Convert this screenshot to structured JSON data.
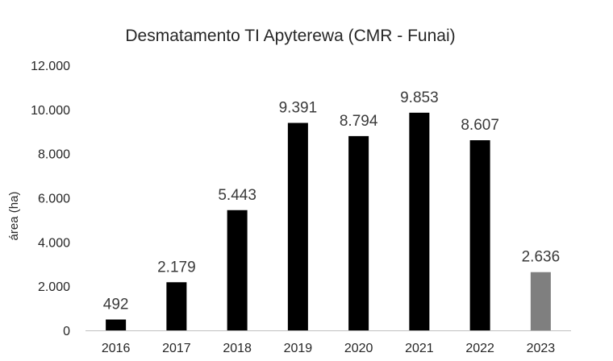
{
  "chart_data": {
    "type": "bar",
    "title": "Desmatamento TI Apyterewa (CMR - Funai)",
    "xlabel": "",
    "ylabel": "área (ha)",
    "ylim": [
      0,
      12000
    ],
    "yticks": [
      0,
      2000,
      4000,
      6000,
      8000,
      10000,
      12000
    ],
    "ytick_labels": [
      "0",
      "2.000",
      "4.000",
      "6.000",
      "8.000",
      "10.000",
      "12.000"
    ],
    "grid": false,
    "categories": [
      "2016",
      "2017",
      "2018",
      "2019",
      "2020",
      "2021",
      "2022",
      "2023"
    ],
    "values": [
      492,
      2179,
      5443,
      9391,
      8794,
      9853,
      8607,
      2636
    ],
    "value_labels": [
      "492",
      "2.179",
      "5.443",
      "9.391",
      "8.794",
      "9.853",
      "8.607",
      "2.636"
    ],
    "colors": [
      "#000000",
      "#000000",
      "#000000",
      "#000000",
      "#000000",
      "#000000",
      "#000000",
      "#7f7f7f"
    ],
    "axis_color": "#bfbfbf"
  }
}
